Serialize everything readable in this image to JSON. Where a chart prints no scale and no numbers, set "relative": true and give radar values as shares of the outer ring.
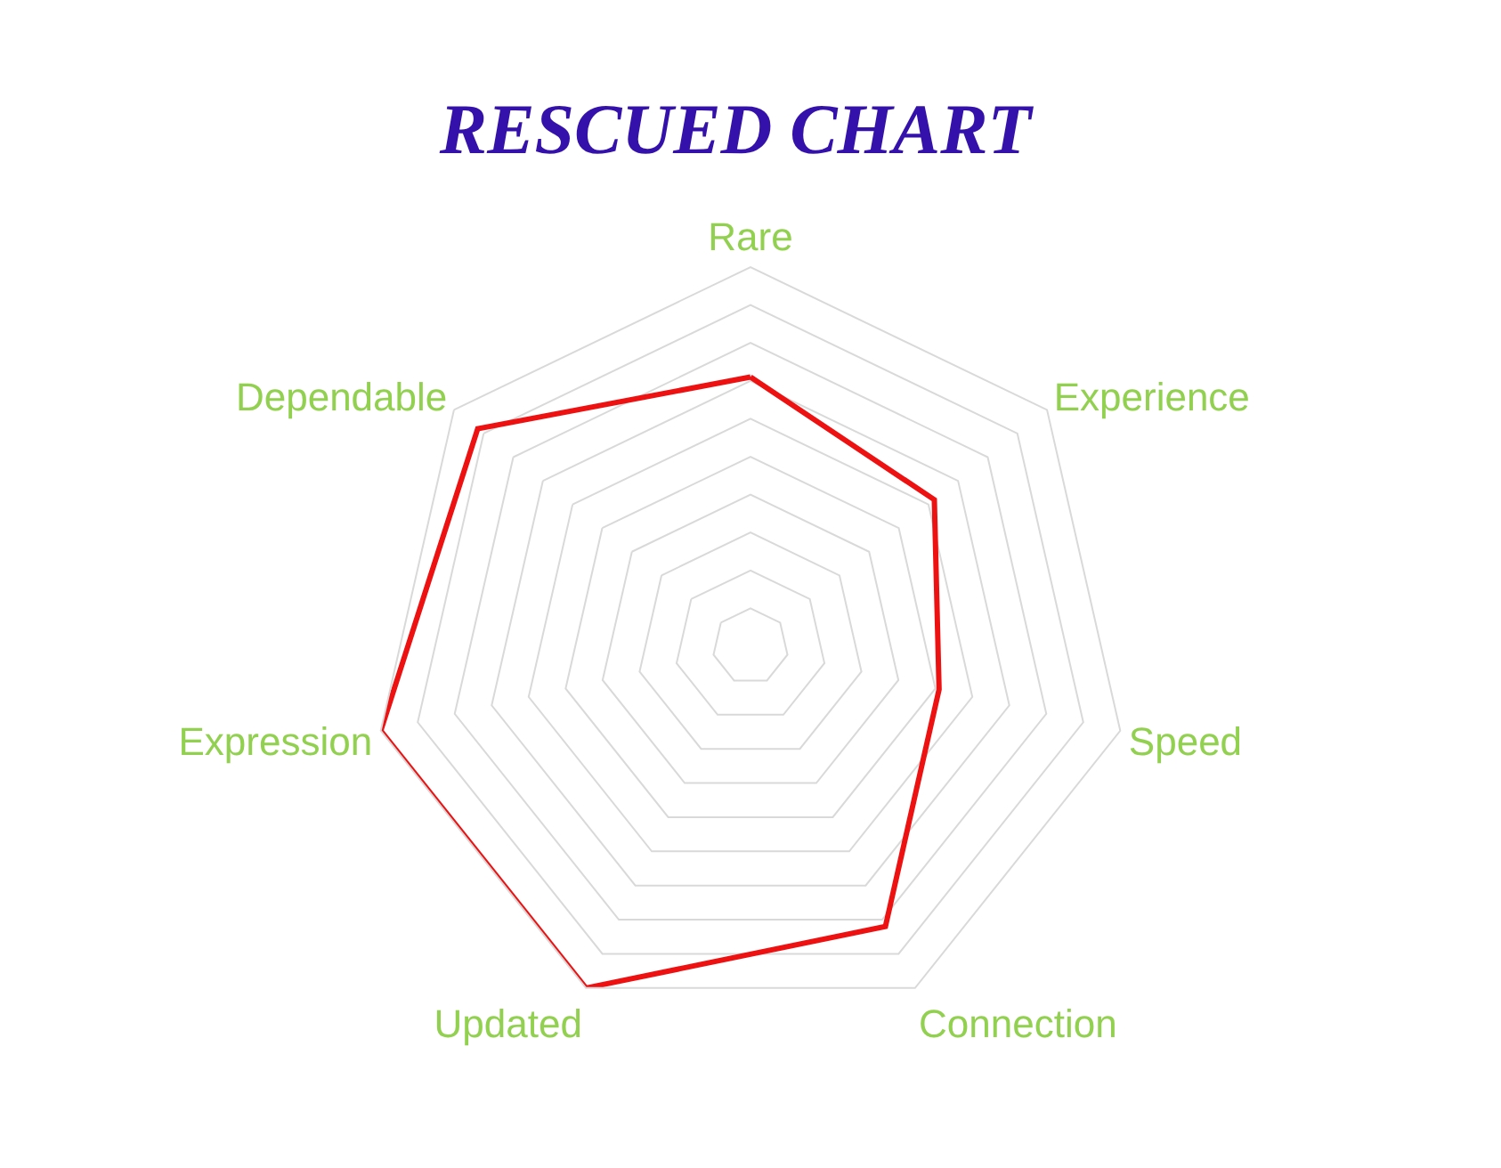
{
  "chart_data": {
    "type": "radar",
    "title": "RESCUED CHART",
    "relative": true,
    "categories": [
      "Rare",
      "Experience",
      "Speed",
      "Connection",
      "Updated",
      "Expression",
      "Dependable"
    ],
    "series": [
      {
        "color": "#ee1111",
        "values": [
          0.71,
          0.62,
          0.51,
          0.82,
          1.0,
          1.0,
          0.92
        ]
      }
    ],
    "grid": true,
    "marker": "none"
  }
}
